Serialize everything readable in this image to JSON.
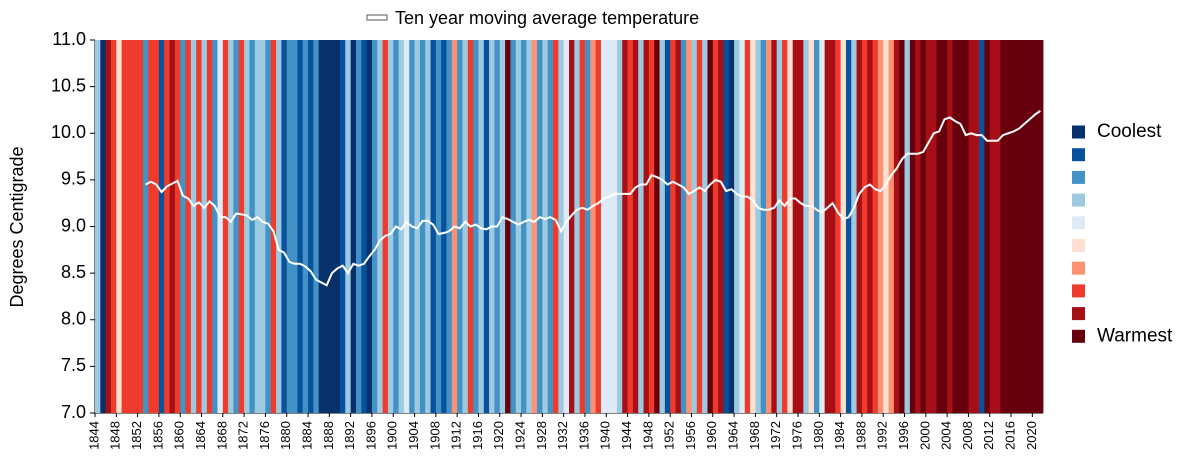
{
  "chart_data": {
    "type": "stripes",
    "y_label": "Degrees Centigrade",
    "x": [
      1844,
      1845,
      1846,
      1847,
      1848,
      1849,
      1850,
      1851,
      1852,
      1853,
      1854,
      1855,
      1856,
      1857,
      1858,
      1859,
      1860,
      1861,
      1862,
      1863,
      1864,
      1865,
      1866,
      1867,
      1868,
      1869,
      1870,
      1871,
      1872,
      1873,
      1874,
      1875,
      1876,
      1877,
      1878,
      1879,
      1880,
      1881,
      1882,
      1883,
      1884,
      1885,
      1886,
      1887,
      1888,
      1889,
      1890,
      1891,
      1892,
      1893,
      1894,
      1895,
      1896,
      1897,
      1898,
      1899,
      1900,
      1901,
      1902,
      1903,
      1904,
      1905,
      1906,
      1907,
      1908,
      1909,
      1910,
      1911,
      1912,
      1913,
      1914,
      1915,
      1916,
      1917,
      1918,
      1919,
      1920,
      1921,
      1922,
      1923,
      1924,
      1925,
      1926,
      1927,
      1928,
      1929,
      1930,
      1931,
      1932,
      1933,
      1934,
      1935,
      1936,
      1937,
      1938,
      1939,
      1940,
      1941,
      1942,
      1943,
      1944,
      1945,
      1946,
      1947,
      1948,
      1949,
      1950,
      1951,
      1952,
      1953,
      1954,
      1955,
      1956,
      1957,
      1958,
      1959,
      1960,
      1961,
      1962,
      1963,
      1964,
      1965,
      1966,
      1967,
      1968,
      1969,
      1970,
      1971,
      1972,
      1973,
      1974,
      1975,
      1976,
      1977,
      1978,
      1979,
      1980,
      1981,
      1982,
      1983,
      1984,
      1985,
      1986,
      1987,
      1988,
      1989,
      1990,
      1991,
      1992,
      1993,
      1994,
      1995,
      1996,
      1997,
      1998,
      1999,
      2000,
      2001,
      2002,
      2003,
      2004,
      2005,
      2006,
      2007,
      2008,
      2009,
      2010,
      2011,
      2012,
      2013,
      2014,
      2015,
      2016,
      2017,
      2018,
      2019,
      2020,
      2021
    ],
    "stripes": [
      4,
      1,
      9,
      8,
      6,
      8,
      8,
      8,
      8,
      3,
      8,
      8,
      2,
      8,
      9,
      8,
      3,
      8,
      4,
      8,
      4,
      8,
      3,
      5,
      8,
      4,
      3,
      8,
      4,
      3,
      4,
      4,
      3,
      8,
      4,
      2,
      3,
      3,
      2,
      3,
      2,
      3,
      1,
      1,
      1,
      1,
      2,
      4,
      1,
      3,
      2,
      1,
      3,
      4,
      8,
      4,
      3,
      4,
      5,
      3,
      4,
      3,
      4,
      2,
      3,
      2,
      3,
      7,
      3,
      4,
      8,
      3,
      4,
      2,
      4,
      3,
      4,
      10,
      3,
      4,
      3,
      4,
      7,
      3,
      4,
      3,
      8,
      4,
      5,
      9,
      4,
      8,
      3,
      7,
      8,
      5,
      5,
      5,
      4,
      9,
      8,
      9,
      4,
      9,
      8,
      10,
      4,
      2,
      8,
      9,
      3,
      7,
      4,
      8,
      4,
      10,
      8,
      9,
      2,
      1,
      4,
      5,
      8,
      6,
      4,
      3,
      7,
      9,
      4,
      8,
      6,
      9,
      9,
      4,
      6,
      3,
      5,
      9,
      9,
      8,
      6,
      2,
      4,
      9,
      8,
      9,
      8,
      7,
      6,
      7,
      9,
      10,
      4,
      10,
      9,
      10,
      9,
      9,
      10,
      10,
      9,
      10,
      10,
      10,
      9,
      9,
      2,
      10,
      9,
      9,
      10,
      10,
      10,
      10,
      10,
      10,
      10,
      10
    ],
    "series": [
      {
        "name": "Ten year moving average temperature",
        "color": "#ffffff",
        "values": [
          null,
          null,
          null,
          null,
          null,
          null,
          null,
          null,
          null,
          9.45,
          9.48,
          9.45,
          9.37,
          9.43,
          9.46,
          9.49,
          9.33,
          9.3,
          9.22,
          9.26,
          9.2,
          9.27,
          9.22,
          9.1,
          9.1,
          9.05,
          9.14,
          9.13,
          9.12,
          9.07,
          9.1,
          9.05,
          9.03,
          8.95,
          8.75,
          8.72,
          8.62,
          8.6,
          8.6,
          8.57,
          8.52,
          8.43,
          8.4,
          8.37,
          8.5,
          8.55,
          8.58,
          8.5,
          8.6,
          8.58,
          8.6,
          8.68,
          8.75,
          8.85,
          8.9,
          8.92,
          9.0,
          8.97,
          9.05,
          9.0,
          8.98,
          9.06,
          9.06,
          9.02,
          8.92,
          8.93,
          8.95,
          9.0,
          8.98,
          9.05,
          9.0,
          9.02,
          8.98,
          8.97,
          9.0,
          9.0,
          9.1,
          9.08,
          9.05,
          9.02,
          9.05,
          9.07,
          9.05,
          9.1,
          9.08,
          9.1,
          9.07,
          8.95,
          9.05,
          9.12,
          9.18,
          9.2,
          9.18,
          9.22,
          9.25,
          9.3,
          9.32,
          9.35,
          9.35,
          9.35,
          9.35,
          9.42,
          9.45,
          9.45,
          9.55,
          9.53,
          9.5,
          9.45,
          9.48,
          9.45,
          9.42,
          9.35,
          9.38,
          9.42,
          9.38,
          9.45,
          9.5,
          9.48,
          9.38,
          9.4,
          9.35,
          9.32,
          9.32,
          9.28,
          9.2,
          9.18,
          9.18,
          9.2,
          9.28,
          9.22,
          9.3,
          9.3,
          9.25,
          9.22,
          9.22,
          9.18,
          9.15,
          9.2,
          9.25,
          9.15,
          9.08,
          9.1,
          9.2,
          9.35,
          9.42,
          9.45,
          9.4,
          9.38,
          9.45,
          9.55,
          9.62,
          9.72,
          9.78,
          9.78,
          9.78,
          9.8,
          9.9,
          10.0,
          10.02,
          10.15,
          10.17,
          10.13,
          10.1,
          9.98,
          10.0,
          9.98,
          9.98,
          9.92,
          9.92,
          9.92,
          9.98,
          10.0,
          10.02,
          10.05,
          10.1,
          10.15,
          10.2,
          10.24
        ]
      }
    ],
    "legend": {
      "labels": [
        "Coolest",
        null,
        null,
        null,
        null,
        null,
        null,
        null,
        null,
        "Warmest"
      ],
      "colors": [
        "#08306b",
        "#08519c",
        "#4292c6",
        "#9ecae1",
        "#deebf7",
        "#fee0d2",
        "#fc9272",
        "#ef3b2c",
        "#a50f15",
        "#67000d"
      ]
    },
    "xlim": [
      1844,
      2022
    ],
    "xticks": [
      1844,
      1848,
      1852,
      1856,
      1860,
      1864,
      1868,
      1872,
      1876,
      1880,
      1884,
      1888,
      1892,
      1896,
      1900,
      1904,
      1908,
      1912,
      1916,
      1920,
      1924,
      1928,
      1932,
      1936,
      1940,
      1944,
      1948,
      1952,
      1956,
      1960,
      1964,
      1968,
      1972,
      1976,
      1980,
      1984,
      1988,
      1992,
      1996,
      2000,
      2004,
      2008,
      2012,
      2016,
      2020
    ],
    "ylim": [
      7,
      11
    ],
    "yticks": [
      {
        "value": 7,
        "label": "7.0"
      },
      7.5,
      {
        "value": 8,
        "label": "8.0"
      },
      8.5,
      {
        "value": 9,
        "label": "9.0"
      },
      9.5,
      {
        "value": 10,
        "label": "10.0"
      },
      10.5,
      {
        "value": 11,
        "label": "11.0"
      }
    ]
  }
}
